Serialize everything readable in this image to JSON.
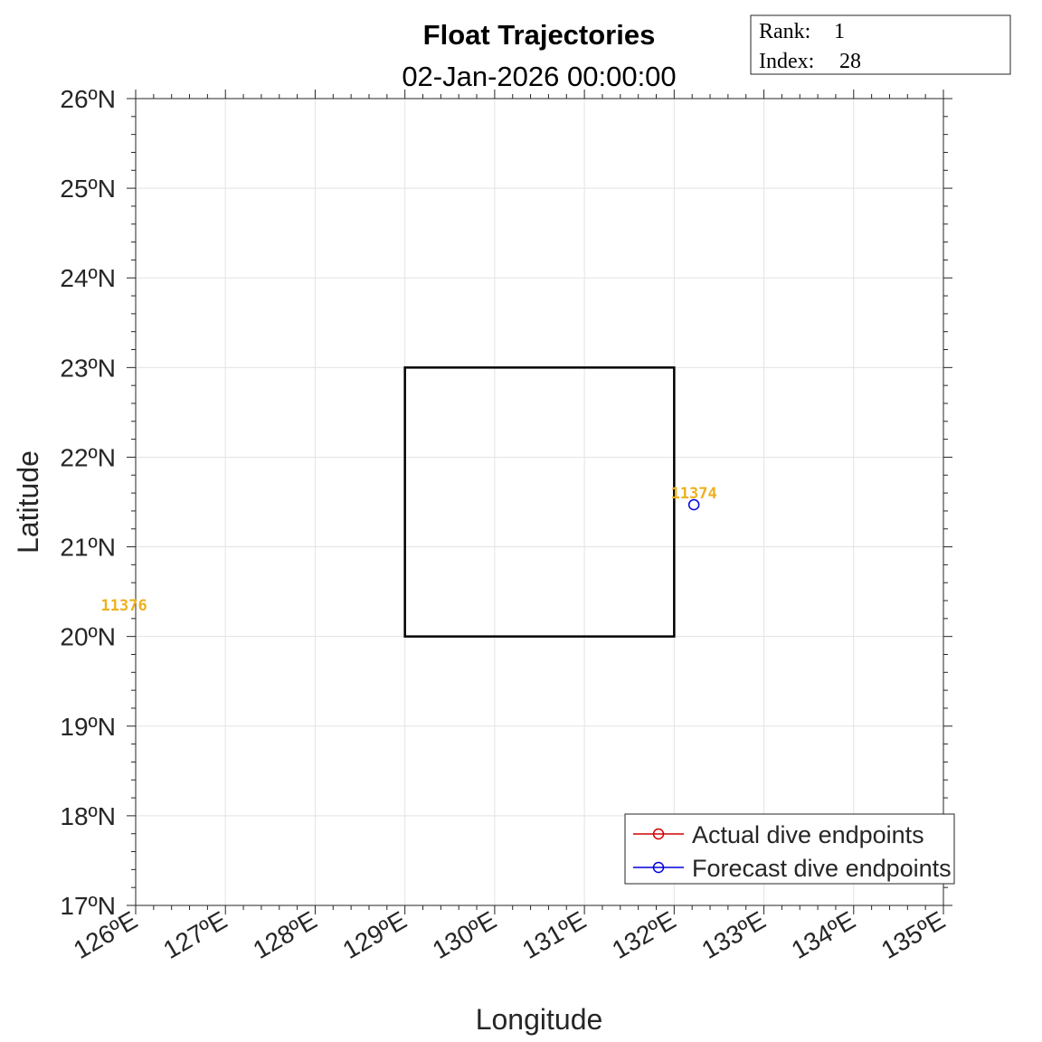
{
  "chart_data": {
    "type": "scatter",
    "title": "Float Trajectories",
    "subtitle": "02-Jan-2026 00:00:00",
    "xlabel": "Longitude",
    "ylabel": "Latitude",
    "xlim": [
      126,
      135
    ],
    "ylim": [
      17,
      26
    ],
    "xticks": [
      "126ºE",
      "127ºE",
      "128ºE",
      "129ºE",
      "130ºE",
      "131ºE",
      "132ºE",
      "133ºE",
      "134ºE",
      "135ºE"
    ],
    "yticks": [
      "17ºN",
      "18ºN",
      "19ºN",
      "20ºN",
      "21ºN",
      "22ºN",
      "23ºN",
      "24ºN",
      "25ºN",
      "26ºN"
    ],
    "grid": true,
    "region_box": {
      "lon": [
        129,
        132
      ],
      "lat": [
        20,
        23
      ]
    },
    "legend": {
      "placement": "bottom-right",
      "entries": [
        {
          "label": "Actual dive endpoints",
          "color": "#d00000"
        },
        {
          "label": "Forecast dive endpoints",
          "color": "#0000e0"
        }
      ]
    },
    "forecast_points": [
      {
        "lon": 132.22,
        "lat": 21.47
      }
    ],
    "float_labels": [
      {
        "text": "11374",
        "lon": 132.22,
        "lat": 21.6
      },
      {
        "text": "11376",
        "lon": 125.87,
        "lat": 20.35
      }
    ],
    "label_color": "#EDB120",
    "info": {
      "rank_label": "Rank:",
      "rank": "1",
      "index_label": "Index:",
      "index": "28"
    }
  }
}
